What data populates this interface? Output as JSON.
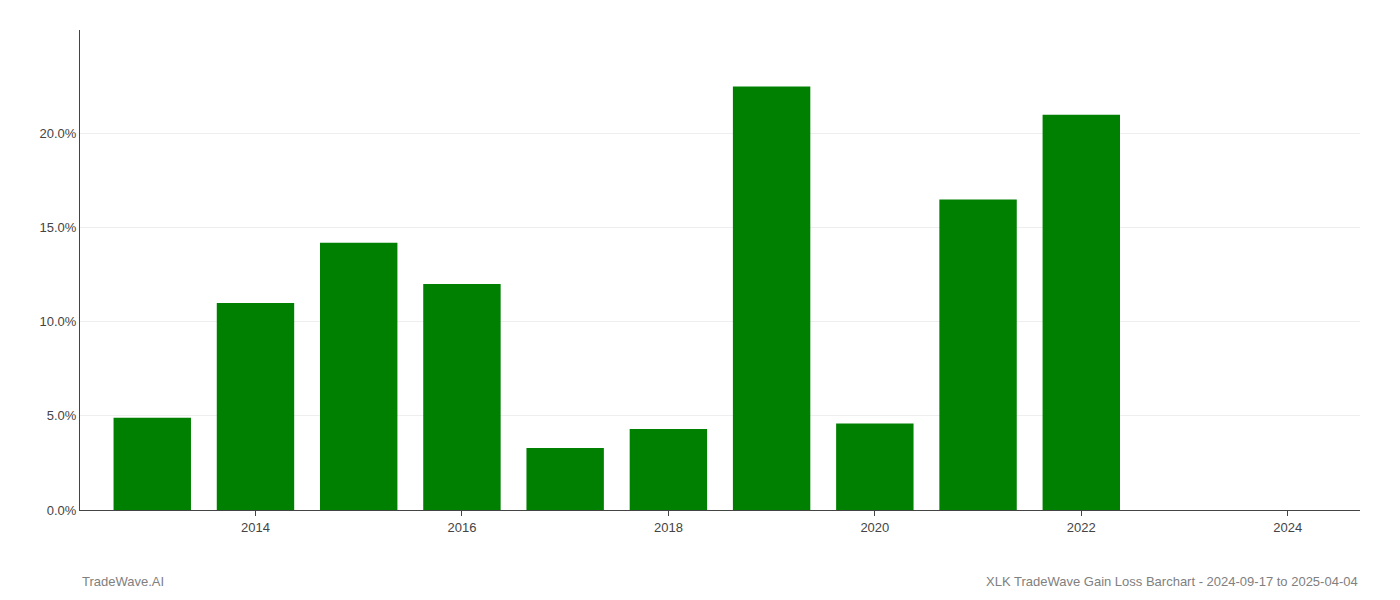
{
  "chart_data": {
    "type": "bar",
    "x": [
      2013,
      2014,
      2015,
      2016,
      2017,
      2018,
      2019,
      2020,
      2021,
      2022,
      2023
    ],
    "values": [
      0.049,
      0.11,
      0.142,
      0.12,
      0.033,
      0.043,
      0.225,
      0.046,
      0.165,
      0.21,
      0.0
    ],
    "color": "#008000",
    "xlim": [
      2012.3,
      2024.7
    ],
    "xticks": [
      2014,
      2016,
      2018,
      2020,
      2022,
      2024
    ],
    "ylim": [
      0,
      0.255
    ],
    "yticks": [
      {
        "value": 0.0,
        "label": "0.0%"
      },
      {
        "value": 0.05,
        "label": "5.0%"
      },
      {
        "value": 0.1,
        "label": "10.0%"
      },
      {
        "value": 0.15,
        "label": "15.0%"
      },
      {
        "value": 0.2,
        "label": "20.0%"
      }
    ],
    "grid": true,
    "annotations": [
      "TradeWave.AI",
      "XLK TradeWave Gain Loss Barchart - 2024-09-17 to 2025-04-04"
    ]
  }
}
